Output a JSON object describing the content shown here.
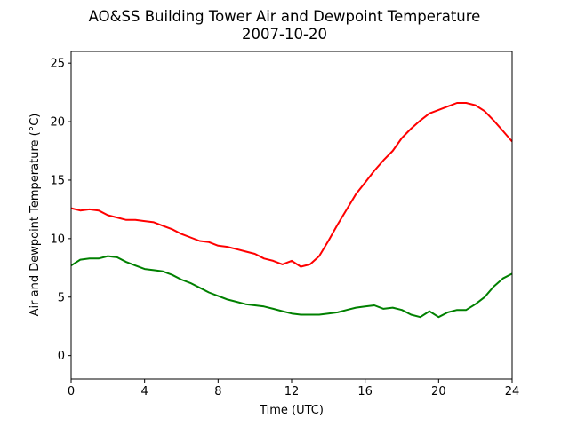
{
  "chart_data": {
    "type": "line",
    "title": "AO&SS Building Tower Air and Dewpoint Temperature",
    "subtitle": "2007-10-20",
    "xlabel": "Time (UTC)",
    "ylabel": "Air and Dewpoint Temperature (°C)",
    "xlim": [
      0,
      24
    ],
    "ylim": [
      -2,
      26
    ],
    "xticks": [
      0,
      4,
      8,
      12,
      16,
      20,
      24
    ],
    "yticks": [
      0,
      5,
      10,
      15,
      20,
      25
    ],
    "grid": false,
    "legend": "none",
    "series": [
      {
        "color": "#ff0000",
        "x": [
          0,
          0.5,
          1,
          1.5,
          2,
          2.5,
          3,
          3.5,
          4,
          4.5,
          5,
          5.5,
          6,
          6.5,
          7,
          7.5,
          8,
          8.5,
          9,
          9.5,
          10,
          10.5,
          11,
          11.5,
          12,
          12.5,
          13,
          13.5,
          14,
          14.5,
          15,
          15.5,
          16,
          16.5,
          17,
          17.5,
          18,
          18.5,
          19,
          19.5,
          20,
          20.5,
          21,
          21.5,
          22,
          22.5,
          23,
          23.5,
          24
        ],
        "y": [
          12.6,
          12.4,
          12.5,
          12.4,
          12.0,
          11.8,
          11.6,
          11.6,
          11.5,
          11.4,
          11.1,
          10.8,
          10.4,
          10.1,
          9.8,
          9.7,
          9.4,
          9.3,
          9.1,
          8.9,
          8.7,
          8.3,
          8.1,
          7.8,
          8.1,
          7.6,
          7.8,
          8.5,
          9.8,
          11.2,
          12.5,
          13.8,
          14.8,
          15.8,
          16.7,
          17.5,
          18.6,
          19.4,
          20.1,
          20.7,
          21.0,
          21.3,
          21.6,
          21.6,
          21.4,
          20.9,
          20.1,
          19.2,
          18.3
        ]
      },
      {
        "color": "#008000",
        "x": [
          0,
          0.5,
          1,
          1.5,
          2,
          2.5,
          3,
          3.5,
          4,
          4.5,
          5,
          5.5,
          6,
          6.5,
          7,
          7.5,
          8,
          8.5,
          9,
          9.5,
          10,
          10.5,
          11,
          11.5,
          12,
          12.5,
          13,
          13.5,
          14,
          14.5,
          15,
          15.5,
          16,
          16.5,
          17,
          17.5,
          18,
          18.5,
          19,
          19.5,
          20,
          20.5,
          21,
          21.5,
          22,
          22.5,
          23,
          23.5,
          24
        ],
        "y": [
          7.7,
          8.2,
          8.3,
          8.3,
          8.5,
          8.4,
          8.0,
          7.7,
          7.4,
          7.3,
          7.2,
          6.9,
          6.5,
          6.2,
          5.8,
          5.4,
          5.1,
          4.8,
          4.6,
          4.4,
          4.3,
          4.2,
          4.0,
          3.8,
          3.6,
          3.5,
          3.5,
          3.5,
          3.6,
          3.7,
          3.9,
          4.1,
          4.2,
          4.3,
          4.0,
          4.1,
          3.9,
          3.5,
          3.3,
          3.8,
          3.3,
          3.7,
          3.9,
          3.9,
          4.4,
          5.0,
          5.9,
          6.6,
          7.0
        ]
      }
    ]
  }
}
